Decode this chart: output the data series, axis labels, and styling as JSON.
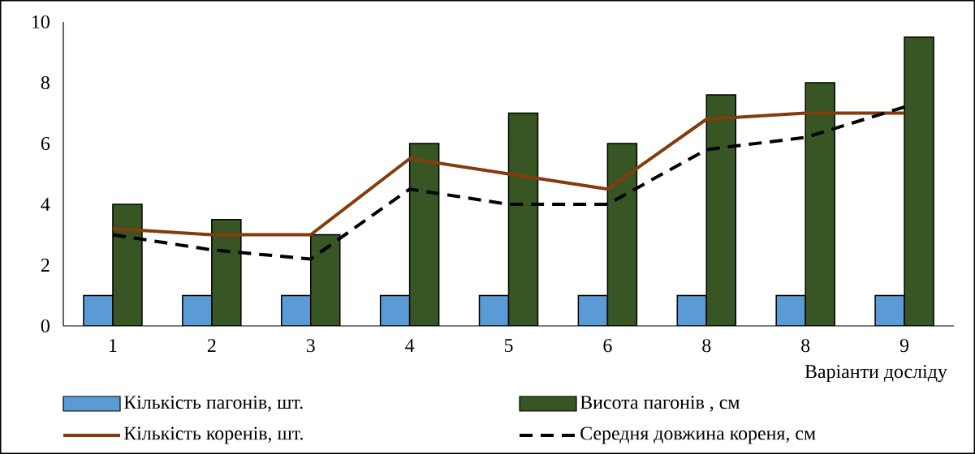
{
  "chart_data": {
    "type": "bar",
    "xlabel": "Варіанти досліду",
    "categories": [
      "1",
      "2",
      "3",
      "4",
      "5",
      "6",
      "8",
      "8",
      "9"
    ],
    "series": [
      {
        "name": "Кількість пагонів, шт.",
        "color": "#5b9bd5",
        "values": [
          1,
          1,
          1,
          1,
          1,
          1,
          1,
          1,
          1
        ]
      },
      {
        "name": "Висота пагонів , см",
        "color": "#375623",
        "values": [
          4,
          3.5,
          3,
          6,
          7,
          6,
          7.6,
          8,
          9.5
        ]
      },
      {
        "name": "Кількість коренів, шт.",
        "type": "line",
        "color": "#843c0c",
        "line_style": "solid",
        "values": [
          3.2,
          3,
          3,
          5.5,
          5,
          4.5,
          6.8,
          7,
          7
        ]
      },
      {
        "name": "Середня довжина кореня, см",
        "type": "line",
        "color": "#000000",
        "line_style": "dashed",
        "values": [
          3,
          2.5,
          2.2,
          4.5,
          4,
          4,
          5.8,
          6.2,
          7.2
        ]
      }
    ],
    "ylim": [
      0,
      10
    ],
    "yticks": [
      0,
      2,
      4,
      6,
      8,
      10
    ],
    "legend": "bottom",
    "marker": "none"
  }
}
